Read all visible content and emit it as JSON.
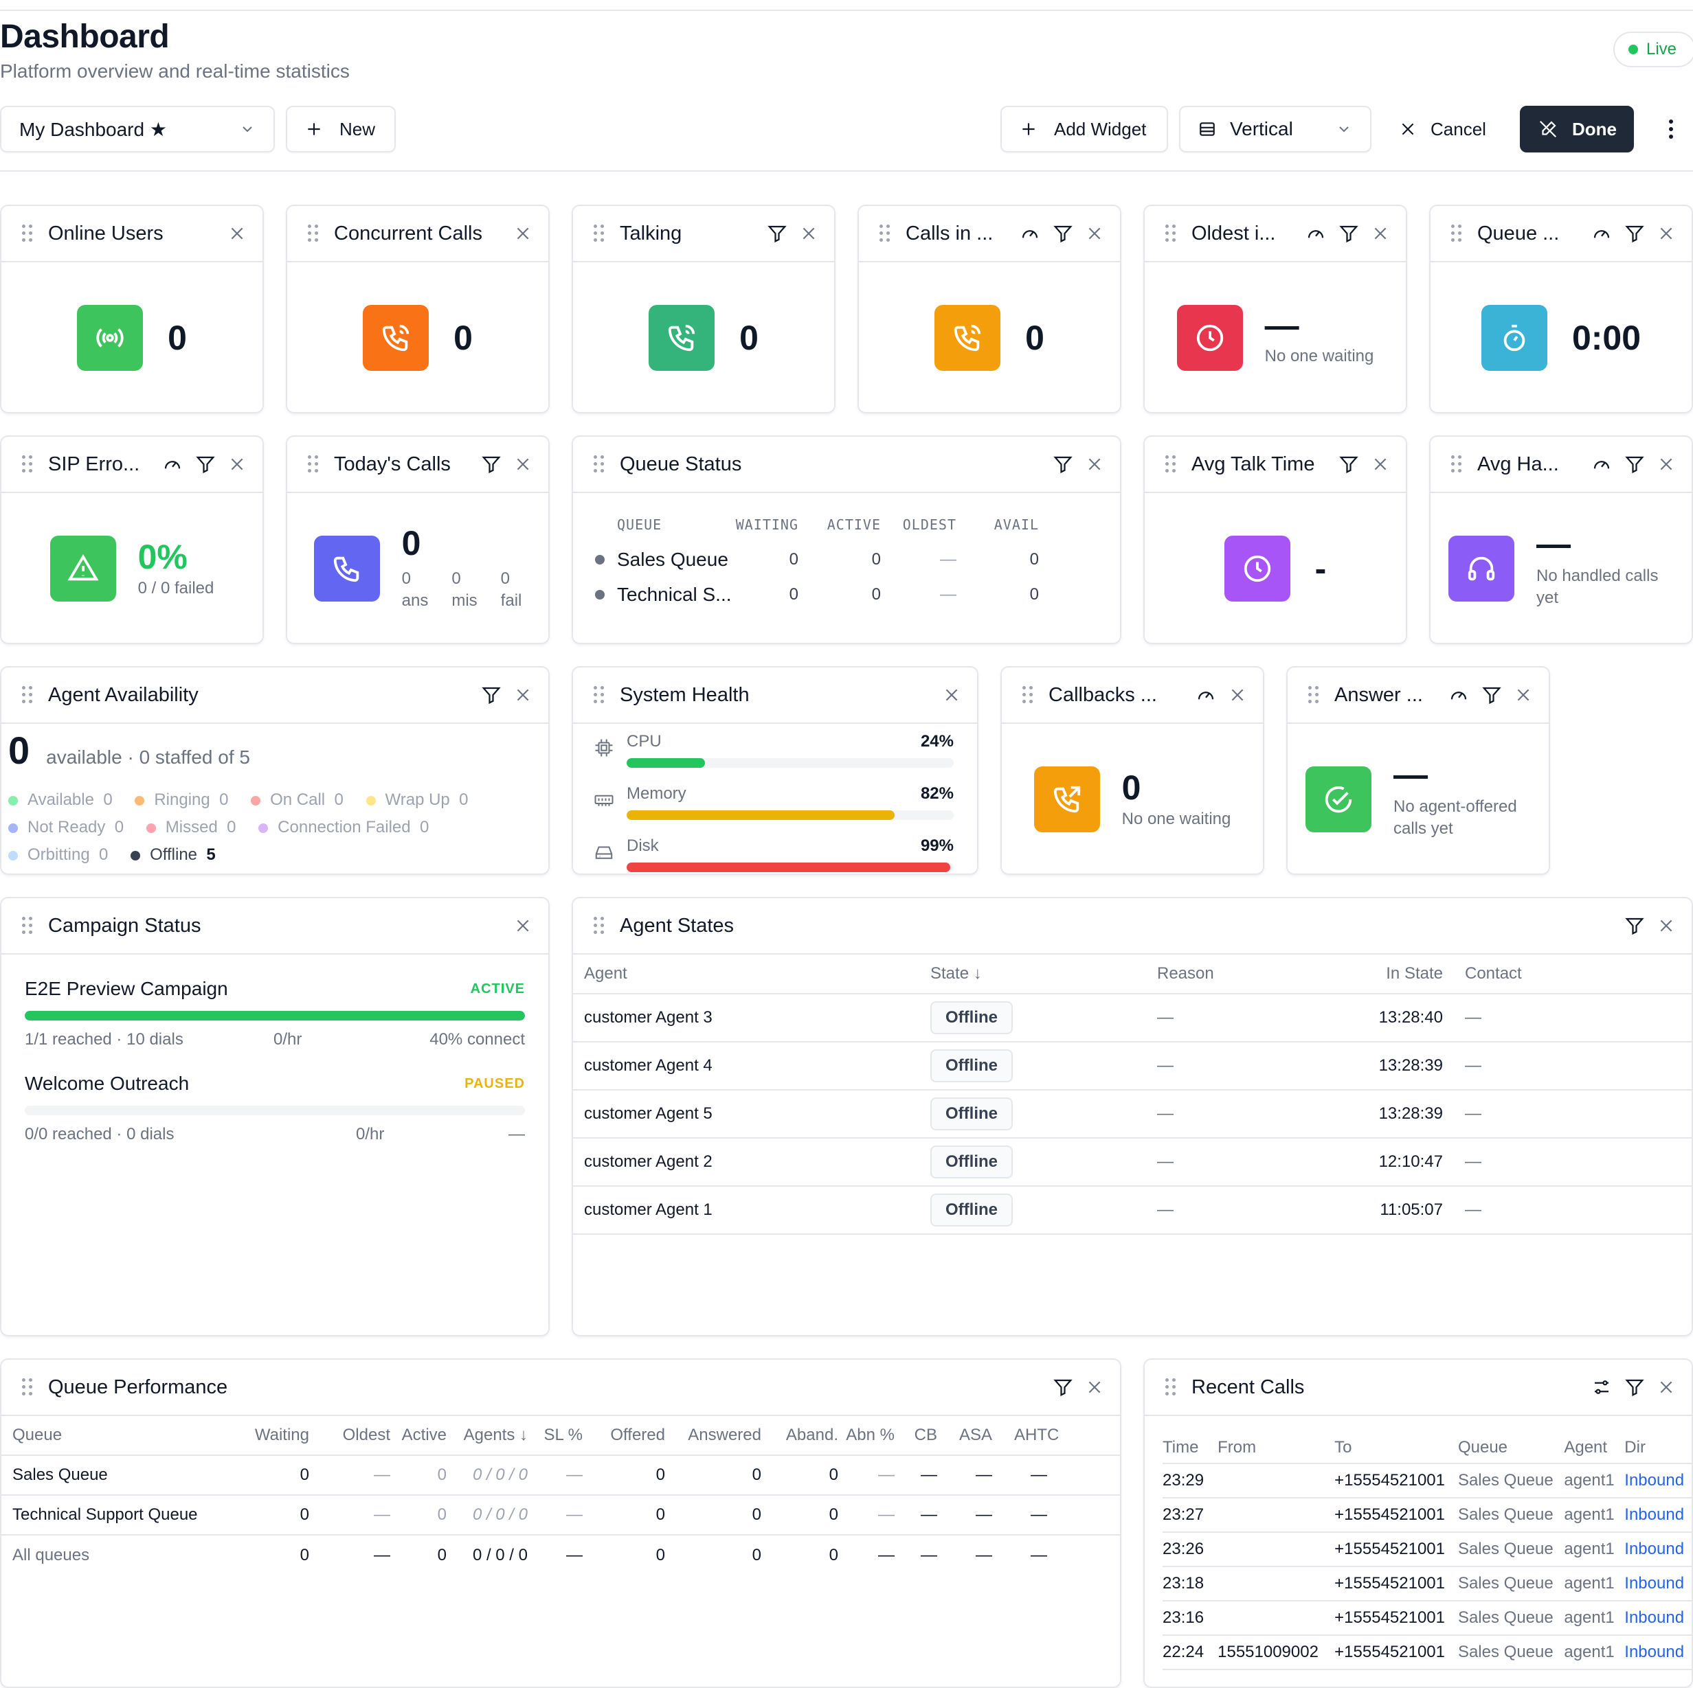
{
  "header": {
    "title": "Dashboard",
    "subtitle": "Platform overview and real-time statistics",
    "live": "Live"
  },
  "toolbar": {
    "dashboard_select": "My Dashboard ★",
    "new": "New",
    "add_widget": "Add Widget",
    "layout_select": "Vertical",
    "cancel": "Cancel",
    "done": "Done"
  },
  "widgets": {
    "online_users": {
      "title": "Online Users",
      "value": "0"
    },
    "concurrent_calls": {
      "title": "Concurrent Calls",
      "value": "0"
    },
    "talking": {
      "title": "Talking",
      "value": "0"
    },
    "calls_in": {
      "title": "Calls in ...",
      "value": "0"
    },
    "oldest": {
      "title": "Oldest i...",
      "value": "—",
      "sub": "No one waiting"
    },
    "queue": {
      "title": "Queue ...",
      "value": "0:00"
    },
    "sip_errors": {
      "title": "SIP Erro...",
      "value": "0%",
      "sub": "0 / 0 failed"
    },
    "todays_calls": {
      "title": "Today's Calls",
      "value": "0",
      "ans": "0",
      "ans_label": "ans",
      "mis": "0",
      "mis_label": "mis",
      "fail": "0",
      "fail_label": "fail"
    },
    "queue_status": {
      "title": "Queue Status",
      "columns": [
        "QUEUE",
        "WAITING",
        "ACTIVE",
        "OLDEST",
        "AVAIL"
      ],
      "rows": [
        {
          "name": "Sales Queue",
          "waiting": "0",
          "active": "0",
          "oldest": "—",
          "avail": "0"
        },
        {
          "name": "Technical S...",
          "waiting": "0",
          "active": "0",
          "oldest": "—",
          "avail": "0"
        }
      ]
    },
    "avg_talk": {
      "title": "Avg Talk Time",
      "value": "-"
    },
    "avg_handle": {
      "title": "Avg Ha...",
      "value": "—",
      "sub": "No handled calls yet"
    },
    "agent_availability": {
      "title": "Agent Availability",
      "count": "0",
      "summary": "available · 0 staffed of 5",
      "legend": [
        {
          "label": "Available",
          "count": "0",
          "color": "#86efac"
        },
        {
          "label": "Ringing",
          "count": "0",
          "color": "#fdba74"
        },
        {
          "label": "On Call",
          "count": "0",
          "color": "#fca5a5"
        },
        {
          "label": "Wrap Up",
          "count": "0",
          "color": "#fde68a"
        },
        {
          "label": "Not Ready",
          "count": "0",
          "color": "#a5b4fc"
        },
        {
          "label": "Missed",
          "count": "0",
          "color": "#fda4af"
        },
        {
          "label": "Connection Failed",
          "count": "0",
          "color": "#d8b4fe"
        },
        {
          "label": "Orbitting",
          "count": "0",
          "color": "#bfdbfe"
        },
        {
          "label": "Offline",
          "count": "5",
          "color": "#374151"
        }
      ]
    },
    "system_health": {
      "title": "System Health",
      "metrics": [
        {
          "label": "CPU",
          "value": "24%",
          "pct": 24,
          "color": "#22c55e"
        },
        {
          "label": "Memory",
          "value": "82%",
          "pct": 82,
          "color": "#eab308"
        },
        {
          "label": "Disk",
          "value": "99%",
          "pct": 99,
          "color": "#ef4444"
        }
      ]
    },
    "callbacks": {
      "title": "Callbacks ...",
      "value": "0",
      "sub": "No one waiting"
    },
    "answer": {
      "title": "Answer ...",
      "value": "—",
      "sub": "No agent-offered calls yet"
    },
    "campaign_status": {
      "title": "Campaign Status",
      "campaigns": [
        {
          "name": "E2E Preview Campaign",
          "status": "ACTIVE",
          "status_color": "#22c55e",
          "progress": 1.0,
          "reached": "1/1 reached · 10 dials",
          "rate": "0/hr",
          "connect": "40% connect"
        },
        {
          "name": "Welcome Outreach",
          "status": "PAUSED",
          "status_color": "#eab308",
          "progress": 0,
          "reached": "0/0 reached · 0 dials",
          "rate": "0/hr",
          "connect": "—"
        }
      ]
    },
    "agent_states": {
      "title": "Agent States",
      "columns": [
        "Agent",
        "State ↓",
        "Reason",
        "In State",
        "Contact"
      ],
      "rows": [
        {
          "agent": "customer Agent 3",
          "state": "Offline",
          "reason": "—",
          "in_state": "13:28:40",
          "contact": "—"
        },
        {
          "agent": "customer Agent 4",
          "state": "Offline",
          "reason": "—",
          "in_state": "13:28:39",
          "contact": "—"
        },
        {
          "agent": "customer Agent 5",
          "state": "Offline",
          "reason": "—",
          "in_state": "13:28:39",
          "contact": "—"
        },
        {
          "agent": "customer Agent 2",
          "state": "Offline",
          "reason": "—",
          "in_state": "12:10:47",
          "contact": "—"
        },
        {
          "agent": "customer Agent 1",
          "state": "Offline",
          "reason": "—",
          "in_state": "11:05:07",
          "contact": "—"
        }
      ]
    },
    "queue_performance": {
      "title": "Queue Performance",
      "columns": [
        "Queue",
        "Waiting",
        "Oldest",
        "Active",
        "Agents ↓",
        "SL %",
        "Offered",
        "Answered",
        "Aband.",
        "Abn %",
        "CB",
        "ASA",
        "AHT",
        "C"
      ],
      "rows": [
        {
          "queue": "Sales Queue",
          "waiting": "0",
          "oldest": "—",
          "active": "0",
          "agents": "0 / 0 / 0",
          "sl": "—",
          "offered": "0",
          "answered": "0",
          "aband": "0",
          "abn": "—",
          "cb": "—",
          "asa": "—",
          "aht": "—"
        },
        {
          "queue": "Technical Support Queue",
          "waiting": "0",
          "oldest": "—",
          "active": "0",
          "agents": "0 / 0 / 0",
          "sl": "—",
          "offered": "0",
          "answered": "0",
          "aband": "0",
          "abn": "—",
          "cb": "—",
          "asa": "—",
          "aht": "—"
        },
        {
          "queue": "All queues",
          "waiting": "0",
          "oldest": "—",
          "active": "0",
          "agents": "0 / 0 / 0",
          "sl": "—",
          "offered": "0",
          "answered": "0",
          "aband": "0",
          "abn": "—",
          "cb": "—",
          "asa": "—",
          "aht": "—"
        }
      ]
    },
    "recent_calls": {
      "title": "Recent Calls",
      "columns": [
        "Time",
        "From",
        "To",
        "Queue",
        "Agent",
        "Dir"
      ],
      "rows": [
        {
          "time": "23:29",
          "from": "",
          "to": "+15554521001",
          "queue": "Sales Queue",
          "agent": "agent1",
          "dir": "Inbound"
        },
        {
          "time": "23:27",
          "from": "",
          "to": "+15554521001",
          "queue": "Sales Queue",
          "agent": "agent1",
          "dir": "Inbound"
        },
        {
          "time": "23:26",
          "from": "",
          "to": "+15554521001",
          "queue": "Sales Queue",
          "agent": "agent1",
          "dir": "Inbound"
        },
        {
          "time": "23:18",
          "from": "",
          "to": "+15554521001",
          "queue": "Sales Queue",
          "agent": "agent1",
          "dir": "Inbound"
        },
        {
          "time": "23:16",
          "from": "",
          "to": "+15554521001",
          "queue": "Sales Queue",
          "agent": "agent1",
          "dir": "Inbound"
        },
        {
          "time": "22:24",
          "from": "15551009002",
          "to": "+15554521001",
          "queue": "Sales Queue",
          "agent": "agent1",
          "dir": "Inbound"
        }
      ]
    }
  },
  "colors": {
    "green": "#3ec45c",
    "orange": "#f97316",
    "teal_green": "#34b47a",
    "amber": "#f59e0b",
    "red": "#e8364f",
    "cyan": "#3bb3d6",
    "indigo": "#6366f1",
    "purple": "#a855f7",
    "violet": "#8b5cf6",
    "dark": "#1f2937",
    "link": "#2563eb"
  }
}
